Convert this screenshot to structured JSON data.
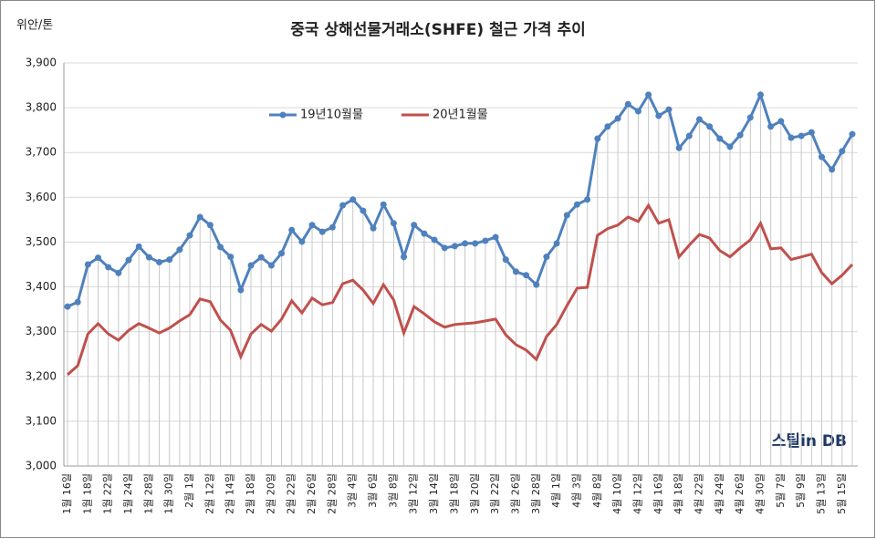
{
  "chart_data": {
    "type": "line",
    "title": "중국 상해선물거래소(SHFE)  철근 가격 추이",
    "y_axis_label": "위안/톤",
    "brand": "스틸in DB",
    "categories": [
      "1월 16일",
      null,
      "1월 18일",
      null,
      "1월 22일",
      null,
      "1월 24일",
      null,
      "1월 28일",
      null,
      "1월 30일",
      null,
      "2월 1일",
      null,
      "2월 12일",
      null,
      "2월 14일",
      null,
      "2월 18일",
      null,
      "2월 20일",
      null,
      "2월 22일",
      null,
      "2월 26일",
      null,
      "2월 28일",
      null,
      "3월 4일",
      null,
      "3월 6일",
      null,
      "3월 8일",
      null,
      "3월 12일",
      null,
      "3월 14일",
      null,
      "3월 18일",
      null,
      "3월 20일",
      null,
      "3월 22일",
      null,
      "3월 26일",
      null,
      "3월 28일",
      null,
      "4월 1일",
      null,
      "4월 3일",
      null,
      "4월 8일",
      null,
      "4월 10일",
      null,
      "4월 12일",
      null,
      "4월 16일",
      null,
      "4월 18일",
      null,
      "4월 22일",
      null,
      "4월 24일",
      null,
      "4월 26일",
      null,
      "4월 30일",
      null,
      "5월 7일",
      null,
      "5월 9일",
      null,
      "5월 13일",
      null,
      "5월 15일",
      null
    ],
    "series": [
      {
        "name": "19년10월물",
        "color": "#4f81bd",
        "values": [
          3356,
          3366,
          3450,
          3465,
          3444,
          3431,
          3460,
          3490,
          3466,
          3455,
          3461,
          3483,
          3515,
          3556,
          3538,
          3489,
          3467,
          3393,
          3448,
          3466,
          3448,
          3475,
          3527,
          3501,
          3538,
          3523,
          3533,
          3582,
          3595,
          3570,
          3531,
          3584,
          3542,
          3467,
          3538,
          3519,
          3505,
          3487,
          3491,
          3497,
          3497,
          3503,
          3511,
          3461,
          3434,
          3426,
          3405,
          3467,
          3497,
          3560,
          3584,
          3595,
          3731,
          3758,
          3776,
          3808,
          3792,
          3829,
          3782,
          3796,
          3710,
          3737,
          3774,
          3758,
          3731,
          3713,
          3739,
          3778,
          3829,
          3758,
          3770,
          3733,
          3737,
          3745,
          3690,
          3662,
          3703,
          3741
        ]
      },
      {
        "name": "20년1월물",
        "color": "#c0504d",
        "values": [
          3204,
          3224,
          3295,
          3318,
          3295,
          3281,
          3303,
          3318,
          3308,
          3297,
          3308,
          3324,
          3338,
          3373,
          3367,
          3326,
          3303,
          3244,
          3295,
          3316,
          3301,
          3328,
          3369,
          3342,
          3375,
          3360,
          3365,
          3407,
          3415,
          3393,
          3363,
          3405,
          3371,
          3297,
          3356,
          3340,
          3322,
          3310,
          3316,
          3318,
          3320,
          3324,
          3328,
          3293,
          3271,
          3259,
          3238,
          3289,
          3316,
          3358,
          3397,
          3399,
          3515,
          3530,
          3538,
          3556,
          3546,
          3582,
          3542,
          3550,
          3467,
          3493,
          3517,
          3509,
          3481,
          3467,
          3487,
          3505,
          3542,
          3485,
          3487,
          3461,
          3467,
          3473,
          3432,
          3407,
          3426,
          3450
        ]
      }
    ],
    "ylim": [
      3000,
      3900
    ],
    "yticks": [
      {
        "value": 3000,
        "label": "3,000"
      },
      {
        "value": 3100,
        "label": "3,100"
      },
      {
        "value": 3200,
        "label": "3,200"
      },
      {
        "value": 3300,
        "label": "3,300"
      },
      {
        "value": 3400,
        "label": "3,400"
      },
      {
        "value": 3500,
        "label": "3,500"
      },
      {
        "value": 3600,
        "label": "3,600"
      },
      {
        "value": 3700,
        "label": "3,700"
      },
      {
        "value": 3800,
        "label": "3,800"
      },
      {
        "value": 3900,
        "label": "3,900"
      }
    ],
    "grid": true,
    "legend": "top"
  }
}
